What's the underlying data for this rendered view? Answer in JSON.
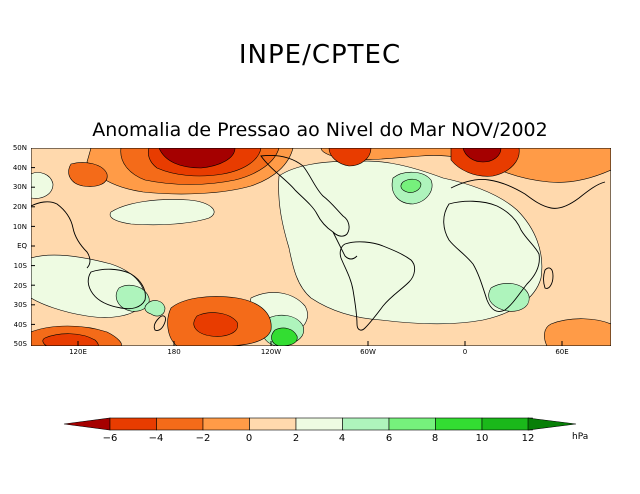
{
  "header": {
    "title": "INPE/CPTEC",
    "subtitle": "Anomalia de Pressao ao Nivel do Mar NOV/2002"
  },
  "map": {
    "lat_labels": [
      "50N",
      "40N",
      "30N",
      "20N",
      "10N",
      "EQ",
      "10S",
      "20S",
      "30S",
      "40S",
      "50S"
    ],
    "lon_labels": [
      "120E",
      "180",
      "120W",
      "60W",
      "0",
      "60E"
    ]
  },
  "legend": {
    "ticks": [
      "−6",
      "−4",
      "−2",
      "0",
      "2",
      "4",
      "6",
      "8",
      "10",
      "12"
    ],
    "unit": "hPa",
    "colors": [
      "#a50000",
      "#e83c00",
      "#f46b19",
      "#ff9b47",
      "#ffd9ad",
      "#eefbe2",
      "#aef4bc",
      "#76f17c",
      "#33dd32",
      "#1ab81a",
      "#10a210",
      "#077f07"
    ]
  }
}
